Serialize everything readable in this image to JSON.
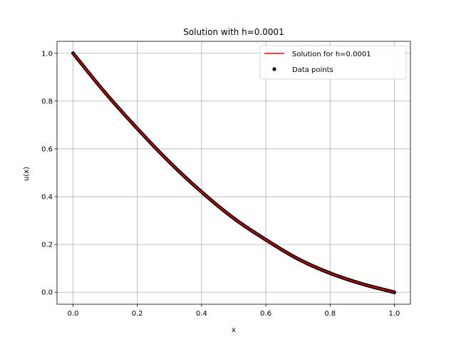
{
  "chart_data": {
    "type": "line",
    "title": "Solution with h=0.0001",
    "xlabel": "x",
    "ylabel": "u(x)",
    "xlim": [
      -0.05,
      1.05
    ],
    "ylim": [
      -0.05,
      1.05
    ],
    "x_ticks": [
      "0.0",
      "0.2",
      "0.4",
      "0.6",
      "0.8",
      "1.0"
    ],
    "y_ticks": [
      "0.0",
      "0.2",
      "0.4",
      "0.6",
      "0.8",
      "1.0"
    ],
    "grid": true,
    "legend_position": "top-right",
    "series": [
      {
        "name": "Solution for h=0.0001",
        "kind": "line",
        "color": "#ff0000",
        "x": [
          0.0,
          0.1,
          0.2,
          0.3,
          0.4,
          0.5,
          0.6,
          0.7,
          0.8,
          0.9,
          1.0
        ],
        "y": [
          1.0,
          0.835,
          0.685,
          0.545,
          0.42,
          0.31,
          0.22,
          0.14,
          0.08,
          0.035,
          0.0
        ]
      },
      {
        "name": "Data points",
        "kind": "scatter",
        "color": "#000000",
        "x": [
          0.0,
          0.1,
          0.2,
          0.3,
          0.4,
          0.5,
          0.6,
          0.7,
          0.8,
          0.9,
          1.0
        ],
        "y": [
          1.0,
          0.835,
          0.685,
          0.545,
          0.42,
          0.31,
          0.22,
          0.14,
          0.08,
          0.035,
          0.0
        ]
      }
    ]
  }
}
